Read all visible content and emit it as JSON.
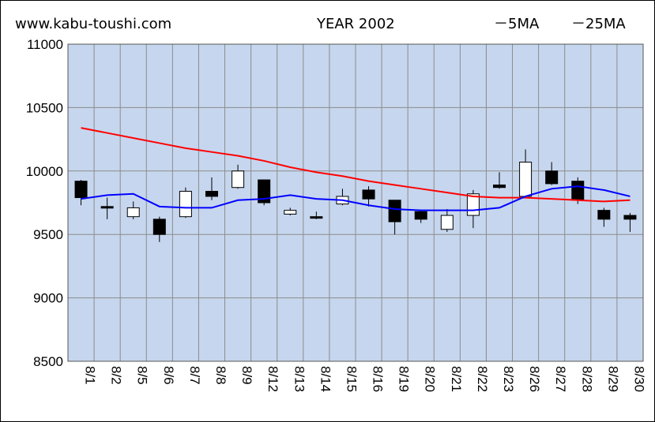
{
  "header": {
    "site": "www.kabu-toushi.com",
    "title": "YEAR 2002",
    "legend_ma5": "－5MA",
    "legend_ma25": "－25MA"
  },
  "colors": {
    "plot_bg": "#c6d6ee",
    "grid": "#8c8c8c",
    "ma5": "#0000ff",
    "ma25": "#ff0000",
    "up_candle": "#ffffff",
    "down_candle": "#000000"
  },
  "chart_data": {
    "type": "candlestick",
    "title": "YEAR 2002",
    "ylim": [
      8500,
      11000
    ],
    "yticks": [
      8500,
      9000,
      9500,
      10000,
      10500,
      11000
    ],
    "ytick_labels": [
      "8500",
      "9000",
      "9500",
      "10000",
      "10500",
      "11000"
    ],
    "grid": true,
    "legend": "top-right",
    "categories": [
      "8/1",
      "8/2",
      "8/5",
      "8/6",
      "8/7",
      "8/8",
      "8/9",
      "8/12",
      "8/13",
      "8/14",
      "8/15",
      "8/16",
      "8/19",
      "8/20",
      "8/21",
      "8/22",
      "8/23",
      "8/26",
      "8/27",
      "8/28",
      "8/29",
      "8/30"
    ],
    "ohlc": [
      {
        "open": 9920,
        "high": 9930,
        "low": 9730,
        "close": 9790
      },
      {
        "open": 9720,
        "high": 9790,
        "low": 9620,
        "close": 9710
      },
      {
        "open": 9640,
        "high": 9760,
        "low": 9620,
        "close": 9710
      },
      {
        "open": 9620,
        "high": 9640,
        "low": 9440,
        "close": 9500
      },
      {
        "open": 9640,
        "high": 9870,
        "low": 9630,
        "close": 9840
      },
      {
        "open": 9840,
        "high": 9950,
        "low": 9770,
        "close": 9800
      },
      {
        "open": 9870,
        "high": 10050,
        "low": 9860,
        "close": 10000
      },
      {
        "open": 9930,
        "high": 9930,
        "low": 9730,
        "close": 9750
      },
      {
        "open": 9660,
        "high": 9710,
        "low": 9650,
        "close": 9690
      },
      {
        "open": 9640,
        "high": 9680,
        "low": 9620,
        "close": 9630
      },
      {
        "open": 9740,
        "high": 9860,
        "low": 9730,
        "close": 9800
      },
      {
        "open": 9850,
        "high": 9880,
        "low": 9720,
        "close": 9780
      },
      {
        "open": 9770,
        "high": 9770,
        "low": 9500,
        "close": 9600
      },
      {
        "open": 9680,
        "high": 9690,
        "low": 9590,
        "close": 9620
      },
      {
        "open": 9540,
        "high": 9700,
        "low": 9520,
        "close": 9650
      },
      {
        "open": 9650,
        "high": 9850,
        "low": 9550,
        "close": 9820
      },
      {
        "open": 9890,
        "high": 9990,
        "low": 9860,
        "close": 9870
      },
      {
        "open": 9800,
        "high": 10170,
        "low": 9790,
        "close": 10070
      },
      {
        "open": 10000,
        "high": 10070,
        "low": 9890,
        "close": 9900
      },
      {
        "open": 9920,
        "high": 9950,
        "low": 9740,
        "close": 9770
      },
      {
        "open": 9690,
        "high": 9710,
        "low": 9560,
        "close": 9620
      },
      {
        "open": 9650,
        "high": 9670,
        "low": 9520,
        "close": 9620
      }
    ],
    "series": [
      {
        "name": "5MA",
        "values": [
          9780,
          9810,
          9820,
          9720,
          9710,
          9710,
          9770,
          9780,
          9810,
          9780,
          9770,
          9730,
          9700,
          9690,
          9690,
          9690,
          9710,
          9800,
          9860,
          9880,
          9850,
          9800
        ]
      },
      {
        "name": "25MA",
        "values": [
          10340,
          10300,
          10260,
          10220,
          10180,
          10150,
          10120,
          10080,
          10030,
          9990,
          9960,
          9920,
          9890,
          9860,
          9830,
          9800,
          9790,
          9790,
          9780,
          9770,
          9760,
          9770
        ]
      }
    ]
  }
}
